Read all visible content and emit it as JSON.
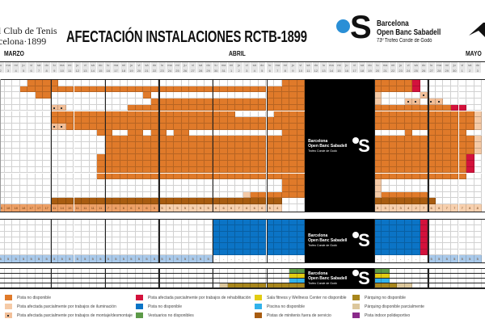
{
  "header": {
    "club_line1": "l Club de Tenis",
    "club_line2": "celona·1899",
    "title": "AFECTACIÓN INSTALACIONES RCTB-1899",
    "brand_line1": "Barcelona",
    "brand_line2": "Open Banc Sabadell",
    "brand_line3": "73º Trofeo Conde de Godó",
    "logo_letter": "S"
  },
  "months": [
    {
      "label": "MARZO"
    },
    {
      "label": "ABRIL"
    },
    {
      "label": "MAYO"
    }
  ],
  "weekdays": [
    "lu",
    "ma",
    "mi",
    "ju",
    "vi",
    "sá",
    "do"
  ],
  "dates": [
    "2",
    "3",
    "4",
    "5",
    "6",
    "7",
    "8",
    "9",
    "10",
    "11",
    "12",
    "13",
    "14",
    "15",
    "16",
    "17",
    "18",
    "19",
    "20",
    "21",
    "22",
    "23",
    "24",
    "25",
    "26",
    "27",
    "28",
    "29",
    "30",
    "31",
    "1",
    "2",
    "3",
    "4",
    "5",
    "6",
    "7",
    "8",
    "9",
    "10",
    "11",
    "12",
    "13",
    "14",
    "15",
    "16",
    "17",
    "18",
    "19",
    "20",
    "21",
    "22",
    "23",
    "24",
    "25",
    "26",
    "27",
    "28",
    "29",
    "30",
    "1",
    "2",
    "3"
  ],
  "colors": {
    "w": "#ffffff",
    "o": "#e07a2a",
    "l": "#f5caa6",
    "m": "#f2bf98",
    "r": "#d3123c",
    "d": "#a85c10",
    "b": "#0b74c6",
    "g": "#5c9a48",
    "y": "#e2cc12",
    "c": "#32b2ea",
    "G": "#a8861c",
    "t": "#dcc79c",
    "p": "#8a2a8a",
    "k": "#000000",
    "cm": "#eda066",
    "cl": "#f7d0ae",
    "cb": "#a9c9ea"
  },
  "block_text": {
    "line1": "Barcelona",
    "line2": "Open Banc Sabadell",
    "line3": "Trofeo Conde de Godó",
    "letter": "S"
  },
  "section1": {
    "rows": [
      "w4 o4 w29 o3 k9 o5 r1 w8",
      "w3 o37 k9 o5 r1 w8",
      "w5 o2 w12 o1 w15 o5 k9 l1 w5 m1 w7",
      "w20 o20 k9 l1 w3 m2 w1 m2 w5",
      "w7 m2 w8 o23 k9 o10 r2 w2",
      "w7 o24 w5 o4 k9 o13 l1",
      "w7 o33 k9 o13 l1",
      "w7 m2 o31 k9 o13 l1",
      "w13 o2 w2 o2 w1 o2 w1 o2 w12 o3 k9 w4 o1 w2 o5 w2",
      "w14 o26 k9 o13 l1",
      "w14 o26 k9 o13 l1",
      "w14 o26 k9 o13 l1",
      "w13 o27 k9 o12 r1 w1",
      "w13 o27 k9 o12 r1 w1",
      "w13 o27 k9 o12 r1 w1",
      "w13 o27 k9 o12 w2",
      "w37 o3 k9 l1 w13",
      "w37 o3 k9 l1 w13",
      "w32 l1 o7 k9 l1 o6 w7",
      "w7 d30 w3 k9 d8 w6"
    ],
    "count_style": "cm21 cl16 w3 k9 cl14",
    "counts": [
      "18",
      "18",
      "18",
      "18",
      "17",
      "17",
      "17",
      "11",
      "14",
      "15",
      "11",
      "11",
      "11",
      "11",
      "7",
      "6",
      "6",
      "6",
      "6",
      "6",
      "5",
      "5",
      "5",
      "5",
      "5",
      "5",
      "5",
      "5",
      "6",
      "6",
      "6",
      "7",
      "6",
      "6",
      "6",
      "5",
      "4",
      "",
      "",
      "",
      "",
      "",
      "",
      "",
      "",
      "",
      "",
      "",
      "",
      "3",
      "3",
      "3",
      "3",
      "4",
      "2",
      "7",
      "6",
      "6",
      "7",
      "7",
      "7",
      "8",
      "8"
    ]
  },
  "section2": {
    "rows": [
      "w28 b12 k9 b6 r1 w7",
      "w28 b12 k9 b6 r1 w7",
      "w28 b12 k9 b6 r1 w7",
      "w28 b12 k9 b6 r1 w7",
      "w28 b12 k9 b6 r1 w7",
      "w28 b12 k9 b6 r1 w7"
    ],
    "count_style": "cb28 w12 k9 w7 cb7",
    "counts": [
      "5",
      "5",
      "5",
      "5",
      "5",
      "5",
      "5",
      "5",
      "5",
      "5",
      "5",
      "5",
      "5",
      "5",
      "5",
      "5",
      "5",
      "5",
      "5",
      "5",
      "5",
      "5",
      "5",
      "5",
      "5",
      "5",
      "5",
      "5",
      "-",
      "-",
      "-",
      "-",
      "-",
      "-",
      "-",
      "-",
      "-",
      "-",
      "-",
      "-",
      "",
      "",
      "",
      "",
      "",
      "",
      "",
      "",
      "",
      "-",
      "-",
      "-",
      "-",
      "-",
      "-",
      "-",
      "5",
      "5",
      "5",
      "5",
      "5",
      "5",
      "5"
    ]
  },
  "section3": {
    "rows": [
      "w38 g2 k9 g2 w12",
      "w38 y2 k9 y2 w12",
      "w38 c2 k9 c2 w12",
      "w29 t1 G10 k9 G3 t2 w9"
    ]
  },
  "legend": [
    {
      "color": "o",
      "label": "Pista no disponible"
    },
    {
      "color": "l",
      "label": "Pista afectada parcialmente por trabajos de iluminación"
    },
    {
      "color": "m",
      "label": "Pista afectada parcialmente por trabajos de montaje/desmontaje",
      "dot": true
    },
    {
      "color": "r",
      "label": "Pista afectada parcialmente por trabajos de rehabilitación"
    },
    {
      "color": "b",
      "label": "Pista no disponible"
    },
    {
      "color": "g",
      "label": "Vestuarios no disponibles"
    },
    {
      "color": "y",
      "label": "Sala fitness y Wellness Center no disponible"
    },
    {
      "color": "c",
      "label": "Piscina no disponible"
    },
    {
      "color": "d",
      "label": "Pistas de minitenis fuera de servicio"
    },
    {
      "color": "G",
      "label": "Párquing no disponible"
    },
    {
      "color": "t",
      "label": "Párquing disponible parcialmente"
    },
    {
      "color": "p",
      "label": "Pista indoor polideportivo"
    }
  ]
}
